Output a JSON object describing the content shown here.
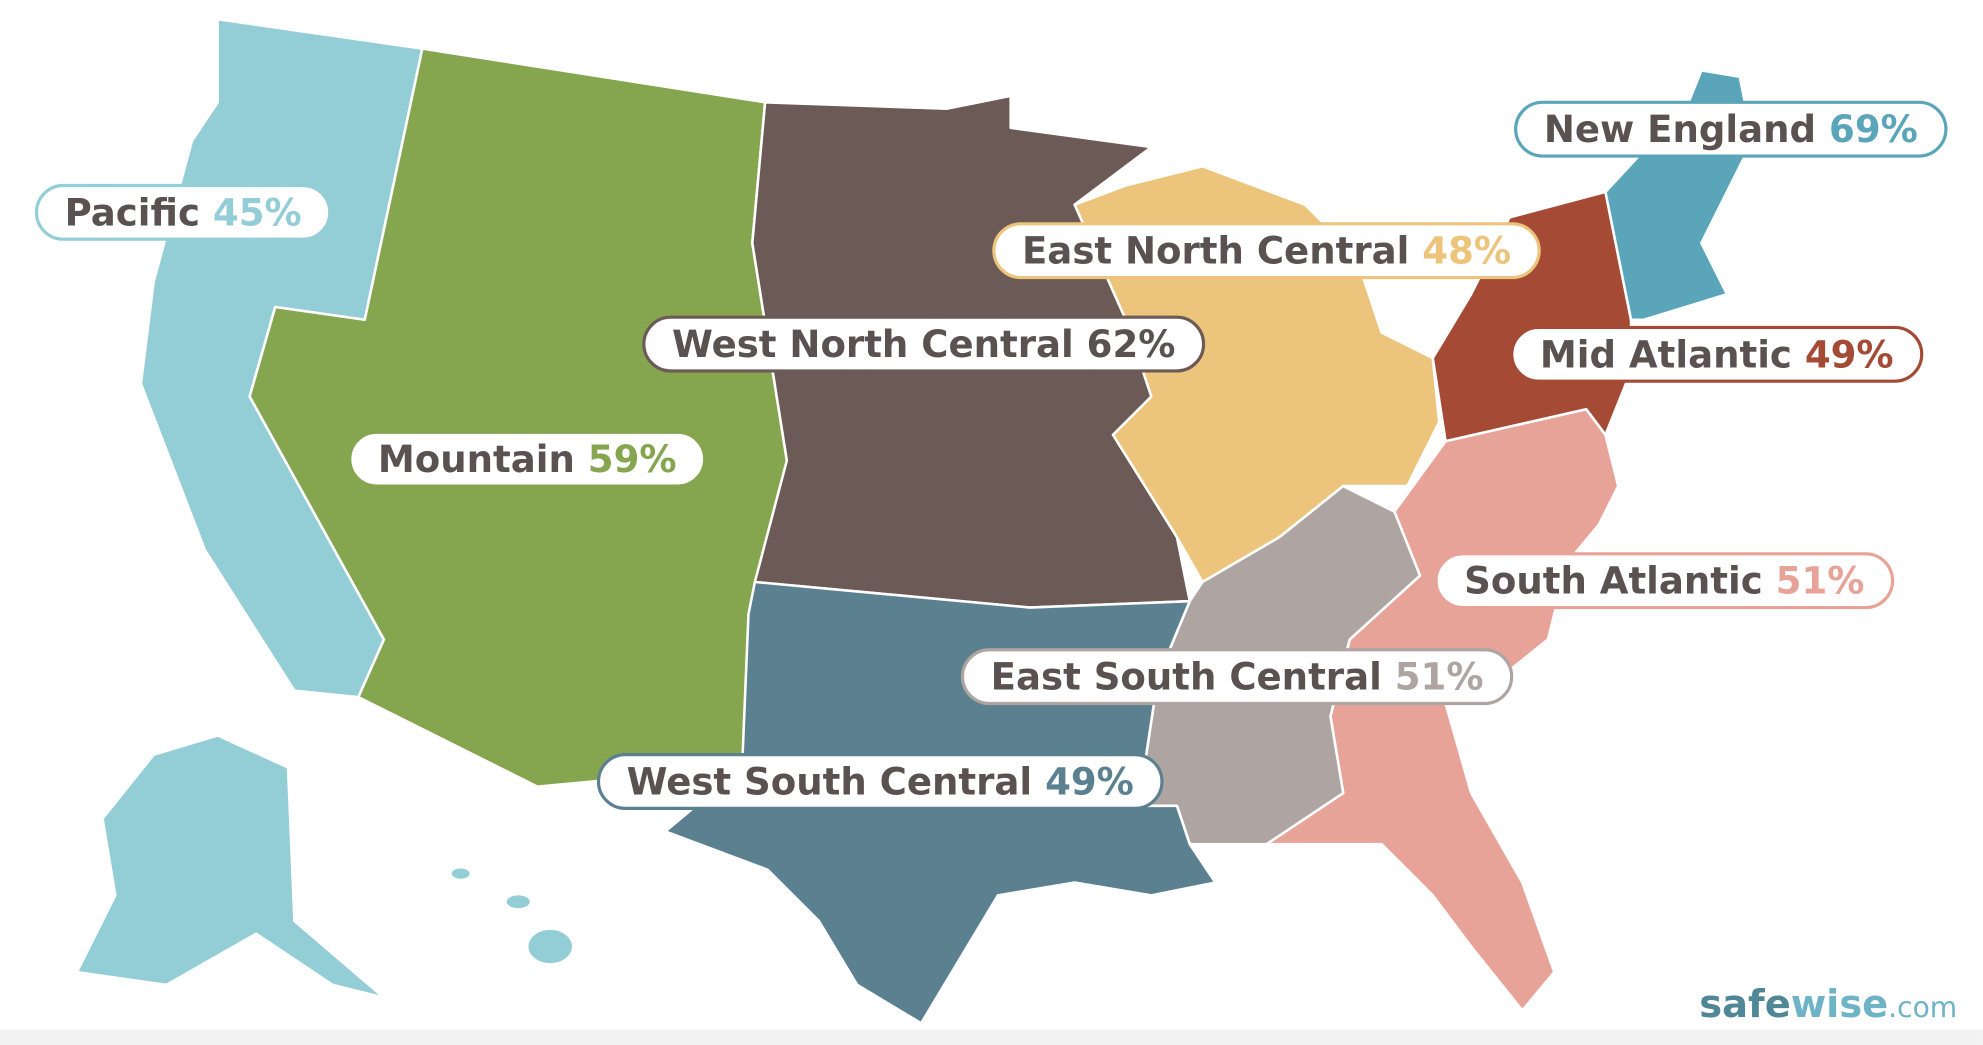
{
  "regions": [
    {
      "name": "Pacific",
      "value": 45,
      "value_label": "45%",
      "color": "#93cdd6"
    },
    {
      "name": "Mountain",
      "value": 59,
      "value_label": "59%",
      "color": "#85a54f"
    },
    {
      "name": "West North Central",
      "value": 62,
      "value_label": "62%",
      "color": "#6b5a55"
    },
    {
      "name": "East North Central",
      "value": 48,
      "value_label": "48%",
      "color": "#ecc47c"
    },
    {
      "name": "Mid Atlantic",
      "value": 49,
      "value_label": "49%",
      "color": "#a44a35"
    },
    {
      "name": "New England",
      "value": 69,
      "value_label": "69%",
      "color": "#5ba5bb"
    },
    {
      "name": "South Atlantic",
      "value": 51,
      "value_label": "51%",
      "color": "#e8a399"
    },
    {
      "name": "East South Central",
      "value": 51,
      "value_label": "51%",
      "color": "#aea5a2"
    },
    {
      "name": "West South Central",
      "value": 49,
      "value_label": "49%",
      "color": "#5b8191"
    }
  ],
  "brand": {
    "part1": "safe",
    "part2": "wise",
    "part3": ".com"
  }
}
